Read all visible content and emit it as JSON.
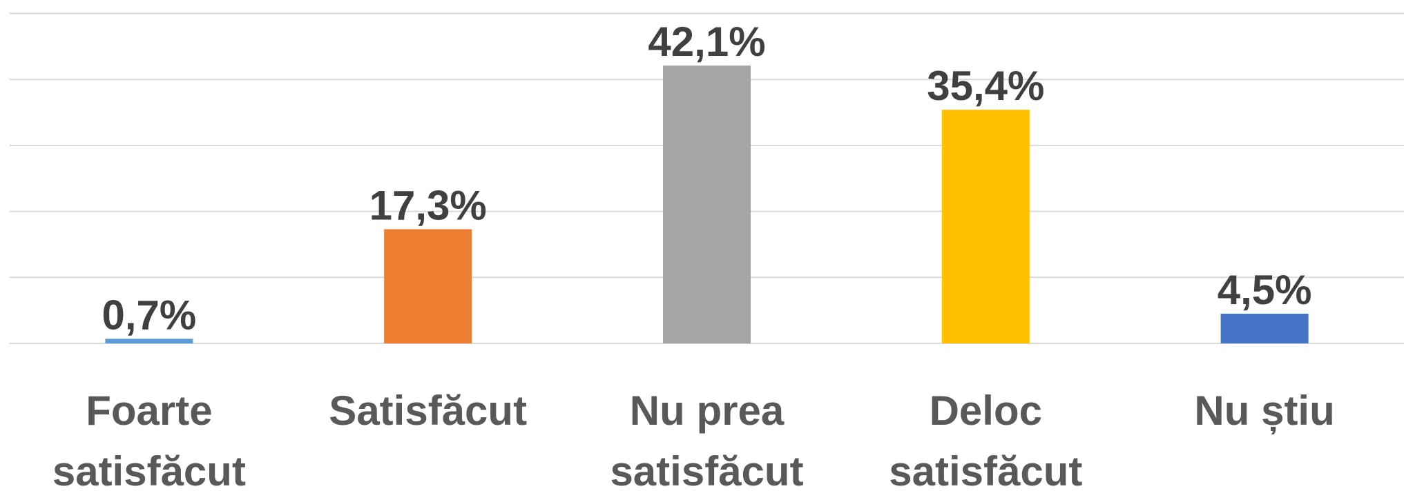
{
  "chart_data": {
    "type": "bar",
    "categories": [
      "Foarte satisfăcut",
      "Satisfăcut",
      "Nu prea satisfăcut",
      "Deloc satisfăcut",
      "Nu știu"
    ],
    "values": [
      0.7,
      17.3,
      42.1,
      35.4,
      4.5
    ],
    "value_labels": [
      "0,7%",
      "17,3%",
      "42,1%",
      "35,4%",
      "4,5%"
    ],
    "colors": [
      "#5b9bd5",
      "#ed7d31",
      "#a5a5a5",
      "#ffc000",
      "#4472c4"
    ],
    "ylim": [
      0,
      50
    ],
    "yticks": [
      0,
      10,
      20,
      30,
      40,
      50
    ],
    "grid": true
  }
}
